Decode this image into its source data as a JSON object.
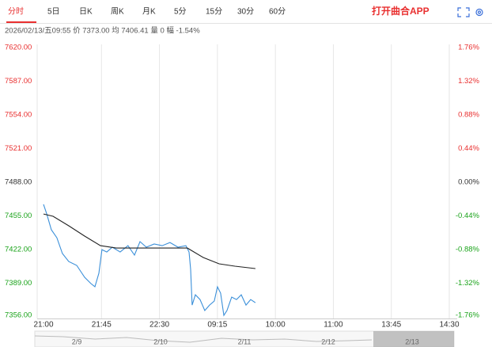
{
  "tabs": [
    "分时",
    "5日",
    "日K",
    "周K",
    "月K",
    "5分",
    "15分",
    "30分",
    "60分"
  ],
  "app_link": "打开曲合APP",
  "info": "2026/02/13/五09:55 价 7373.00 均 7406.41 量 0 幅 -1.54%",
  "navigator_dates": [
    "2/9",
    "2/10",
    "2/11",
    "2/12",
    "2/13"
  ],
  "chart_data": {
    "type": "line",
    "xlim": [
      0,
      315
    ],
    "xticks": [
      {
        "value": 0,
        "label": "21:00"
      },
      {
        "value": 45,
        "label": "21:45"
      },
      {
        "value": 90,
        "label": "22:30"
      },
      {
        "value": 135,
        "label": "09:15"
      },
      {
        "value": 180,
        "label": "10:00"
      },
      {
        "value": 225,
        "label": "11:00"
      },
      {
        "value": 270,
        "label": "13:45"
      },
      {
        "value": 315,
        "label": "14:30"
      }
    ],
    "ylim": [
      7356,
      7620
    ],
    "yticks": [
      {
        "value": 7620,
        "label": "7620.00"
      },
      {
        "value": 7587,
        "label": "7587.00"
      },
      {
        "value": 7554,
        "label": "7554.00"
      },
      {
        "value": 7521,
        "label": "7521.00"
      },
      {
        "value": 7488,
        "label": "7488.00"
      },
      {
        "value": 7455,
        "label": "7455.00"
      },
      {
        "value": 7422,
        "label": "7422.00"
      },
      {
        "value": 7389,
        "label": "7389.00"
      },
      {
        "value": 7356,
        "label": "7356.00"
      }
    ],
    "y2lim": [
      -1.76,
      1.76
    ],
    "y2ticks": [
      {
        "value": 1.76,
        "label": "1.76%"
      },
      {
        "value": 1.32,
        "label": "1.32%"
      },
      {
        "value": 0.88,
        "label": "0.88%"
      },
      {
        "value": 0.44,
        "label": "0.44%"
      },
      {
        "value": 0,
        "label": "0.00%"
      },
      {
        "value": -0.44,
        "label": "-0.44%"
      },
      {
        "value": -0.88,
        "label": "-0.88%"
      },
      {
        "value": -1.32,
        "label": "-1.32%"
      },
      {
        "value": -1.76,
        "label": "-1.76%"
      }
    ],
    "up_color": "#e93030",
    "down_color": "#1aa31a",
    "flat_color": "#333333",
    "grid": true,
    "series": [
      {
        "color": "#3a8fd9",
        "x": [
          0,
          2.5,
          6.1,
          10.4,
          14.7,
          19.6,
          25.8,
          31.9,
          36.8,
          39.9,
          43,
          45.4,
          49.1,
          53.4,
          59.5,
          65.6,
          70.6,
          74.9,
          79.8,
          85.9,
          92.1,
          98.2,
          104.4,
          110.5,
          113,
          114.2,
          115.4,
          117.9,
          121.5,
          125.2,
          128.9,
          132.6,
          135,
          137.5,
          140,
          142.4,
          146.1,
          149.8,
          153.5,
          157.2,
          160.8,
          164.5
        ],
        "values": [
          7466.3,
          7456.9,
          7441.4,
          7433.6,
          7418.1,
          7410.3,
          7406.5,
          7394.8,
          7388.7,
          7385.6,
          7398.8,
          7421.9,
          7419.6,
          7424.3,
          7419.6,
          7425.8,
          7416.6,
          7429.8,
          7424.3,
          7427.4,
          7425.8,
          7428.9,
          7424.3,
          7425.8,
          7419.6,
          7402.6,
          7367.6,
          7377.7,
          7373.0,
          7362.2,
          7367.6,
          7371.5,
          7385.5,
          7379.3,
          7357.5,
          7362.2,
          7375.4,
          7373.0,
          7377.7,
          7367.6,
          7373.0,
          7369.9
        ]
      },
      {
        "color": "#222222",
        "x": [
          0,
          7.4,
          19.6,
          31.9,
          44.2,
          56.5,
          111.7,
          124,
          136.3,
          148.6,
          164.5
        ],
        "values": [
          7456.9,
          7454.6,
          7445.3,
          7435.2,
          7425.8,
          7423.5,
          7423.5,
          7414.2,
          7408.0,
          7405.7,
          7403.4
        ]
      }
    ]
  }
}
